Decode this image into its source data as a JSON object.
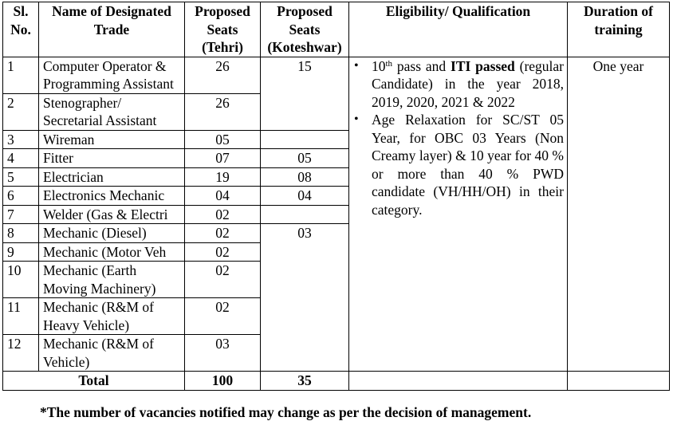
{
  "headers": {
    "sl": "Sl. No.",
    "trade": "Name of Designated Trade",
    "tehri": "Proposed Seats (Tehri)",
    "koteshwar": "Proposed Seats (Koteshwar)",
    "eligibility": "Eligibility/ Qualification",
    "duration": "Duration of training"
  },
  "rows": [
    {
      "sl": "1",
      "trade": "Computer Operator & Programming Assistant",
      "tehri": "26"
    },
    {
      "sl": "2",
      "trade": "Stenographer/ Secretarial Assistant",
      "tehri": "26"
    },
    {
      "sl": "3",
      "trade": "Wireman",
      "tehri": "05"
    },
    {
      "sl": "4",
      "trade": "Fitter",
      "tehri": "07",
      "koteshwar": "05"
    },
    {
      "sl": "5",
      "trade": "Electrician",
      "tehri": "19",
      "koteshwar": "08"
    },
    {
      "sl": "6",
      "trade": "Electronics Mechanic",
      "tehri": "04",
      "koteshwar": "04"
    },
    {
      "sl": "7",
      "trade": "Welder (Gas & Electri",
      "tehri": "02"
    },
    {
      "sl": "8",
      "trade": "Mechanic (Diesel)",
      "tehri": "02"
    },
    {
      "sl": "9",
      "trade": "Mechanic (Motor Veh",
      "tehri": "02"
    },
    {
      "sl": "10",
      "trade": "Mechanic (Earth Moving Machinery)",
      "tehri": "02"
    },
    {
      "sl": "11",
      "trade": "Mechanic (R&M of Heavy Vehicle)",
      "tehri": "02"
    },
    {
      "sl": "12",
      "trade": "Mechanic (R&M of Vehicle)",
      "tehri": "03"
    }
  ],
  "koteshwar_merged": {
    "group1": "15",
    "group2": "03"
  },
  "eligibility": {
    "bullet1_pre": "10",
    "bullet1_sup": "th",
    "bullet1_mid": " pass and ",
    "bullet1_bold": "ITI passed",
    "bullet1_post": " (regular Candidate) in the year 2018, 2019, 2020, 2021 & 2022",
    "bullet2": "Age Relaxation for SC/ST 05 Year, for OBC 03 Years (Non Creamy layer) & 10 year for 40 % or more than 40 % PWD candidate (VH/HH/OH) in their category."
  },
  "duration": "One year",
  "total": {
    "label": "Total",
    "tehri": "100",
    "koteshwar": "35"
  },
  "note": "*The number of vacancies notified may change as per the decision of management."
}
